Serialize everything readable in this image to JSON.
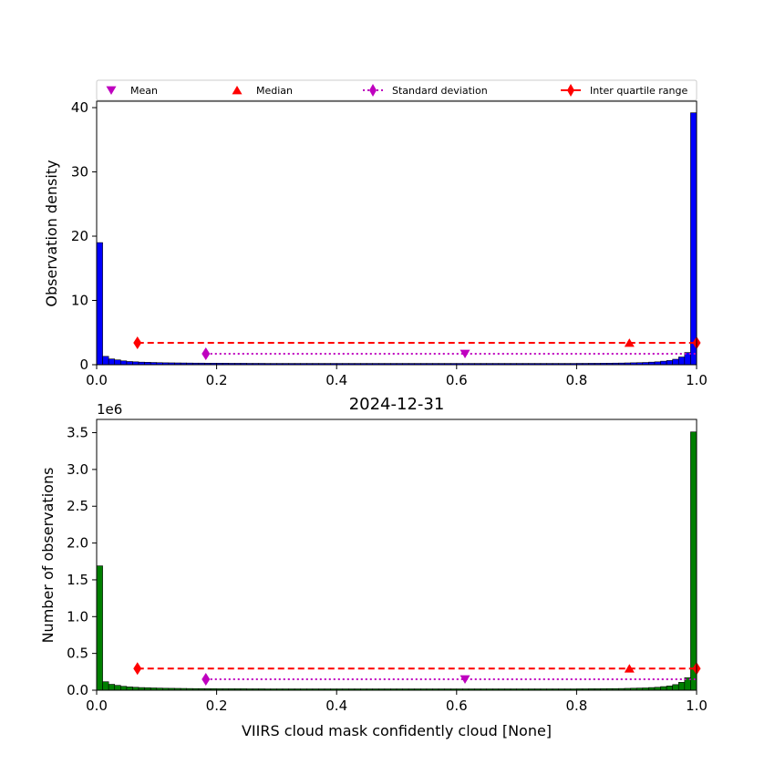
{
  "legend": [
    {
      "label": "Mean",
      "marker": "triangle-down",
      "color": "#bf00bf",
      "line": "none"
    },
    {
      "label": "Median",
      "marker": "triangle-up",
      "color": "#ff0000",
      "line": "none"
    },
    {
      "label": "Standard deviation",
      "marker": "diamond-thin",
      "color": "#bf00bf",
      "line": "dotted"
    },
    {
      "label": "Inter quartile range",
      "marker": "diamond-thin",
      "color": "#ff0000",
      "line": "solid"
    }
  ],
  "chart_data": [
    {
      "type": "bar",
      "title": "",
      "xlabel": "",
      "ylabel": "Observation density",
      "xlim": [
        0.0,
        1.0
      ],
      "ylim": [
        0,
        41
      ],
      "xticks": [
        "0.0",
        "0.2",
        "0.4",
        "0.6",
        "0.8",
        "1.0"
      ],
      "yticks": [
        0,
        10,
        20,
        30,
        40
      ],
      "ytick_labels": [
        "0",
        "10",
        "20",
        "30",
        "40"
      ],
      "bar_color": "#0000ff",
      "bin_width": 0.01,
      "values": [
        19.0,
        1.3,
        0.9,
        0.75,
        0.6,
        0.5,
        0.45,
        0.4,
        0.38,
        0.35,
        0.32,
        0.3,
        0.29,
        0.28,
        0.27,
        0.26,
        0.25,
        0.25,
        0.24,
        0.24,
        0.23,
        0.23,
        0.22,
        0.22,
        0.22,
        0.21,
        0.21,
        0.21,
        0.2,
        0.2,
        0.2,
        0.2,
        0.2,
        0.2,
        0.2,
        0.2,
        0.2,
        0.2,
        0.2,
        0.2,
        0.2,
        0.2,
        0.2,
        0.2,
        0.2,
        0.2,
        0.2,
        0.2,
        0.2,
        0.2,
        0.2,
        0.2,
        0.2,
        0.2,
        0.2,
        0.2,
        0.2,
        0.2,
        0.2,
        0.2,
        0.2,
        0.2,
        0.2,
        0.2,
        0.2,
        0.2,
        0.2,
        0.2,
        0.2,
        0.2,
        0.2,
        0.2,
        0.2,
        0.2,
        0.2,
        0.2,
        0.2,
        0.2,
        0.2,
        0.2,
        0.21,
        0.21,
        0.22,
        0.22,
        0.23,
        0.24,
        0.25,
        0.26,
        0.28,
        0.3,
        0.32,
        0.35,
        0.4,
        0.45,
        0.55,
        0.65,
        0.85,
        1.2,
        1.9,
        39.2
      ],
      "stats": {
        "mean": 0.614,
        "median": 0.888,
        "std_low": 0.182,
        "std_high": 1.0,
        "iqr_low": 0.068,
        "iqr_high": 1.0,
        "std_y": 1.7,
        "iqr_y": 3.4
      }
    },
    {
      "type": "bar",
      "title": "2024-12-31",
      "xlabel": "VIIRS cloud mask confidently cloud [None]",
      "ylabel": "Number of observations",
      "offset_label": "1e6",
      "xlim": [
        0.0,
        1.0
      ],
      "ylim": [
        0,
        3.68
      ],
      "xticks": [
        "0.0",
        "0.2",
        "0.4",
        "0.6",
        "0.8",
        "1.0"
      ],
      "yticks": [
        0.0,
        0.5,
        1.0,
        1.5,
        2.0,
        2.5,
        3.0,
        3.5
      ],
      "ytick_labels": [
        "0.0",
        "0.5",
        "1.0",
        "1.5",
        "2.0",
        "2.5",
        "3.0",
        "3.5"
      ],
      "bar_color": "#007f00",
      "bin_width": 0.01,
      "values": [
        1.69,
        0.115,
        0.08,
        0.066,
        0.053,
        0.045,
        0.04,
        0.036,
        0.034,
        0.031,
        0.029,
        0.027,
        0.026,
        0.025,
        0.024,
        0.023,
        0.022,
        0.022,
        0.021,
        0.021,
        0.02,
        0.02,
        0.02,
        0.02,
        0.02,
        0.019,
        0.019,
        0.019,
        0.018,
        0.018,
        0.018,
        0.018,
        0.018,
        0.018,
        0.018,
        0.018,
        0.018,
        0.018,
        0.018,
        0.018,
        0.018,
        0.018,
        0.018,
        0.018,
        0.018,
        0.018,
        0.018,
        0.018,
        0.018,
        0.018,
        0.018,
        0.018,
        0.018,
        0.018,
        0.018,
        0.018,
        0.018,
        0.018,
        0.018,
        0.018,
        0.018,
        0.018,
        0.018,
        0.018,
        0.018,
        0.018,
        0.018,
        0.018,
        0.018,
        0.018,
        0.018,
        0.018,
        0.018,
        0.018,
        0.018,
        0.018,
        0.018,
        0.018,
        0.018,
        0.018,
        0.019,
        0.019,
        0.02,
        0.02,
        0.021,
        0.022,
        0.022,
        0.023,
        0.025,
        0.027,
        0.029,
        0.031,
        0.036,
        0.04,
        0.049,
        0.058,
        0.076,
        0.107,
        0.17,
        3.51
      ],
      "stats": {
        "mean": 0.614,
        "median": 0.888,
        "std_low": 0.182,
        "std_high": 1.0,
        "iqr_low": 0.068,
        "iqr_high": 1.0,
        "std_y": 0.148,
        "iqr_y": 0.295
      }
    }
  ]
}
